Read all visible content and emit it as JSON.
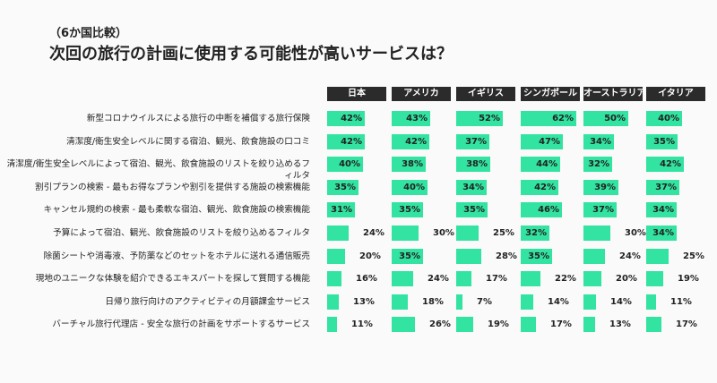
{
  "chart_data": {
    "type": "bar",
    "orientation": "horizontal",
    "subtitle": "（6か国比較）",
    "title": "次回の旅行の計画に使用する可能性が高いサービスは？",
    "categories": [
      "新型コロナウイルスによる旅行の中断を補償する旅行保険",
      "清潔度/衛生安全レベルに関する宿泊、観光、飲食施設の口コミ",
      "清潔度/衛生安全レベルによって宿泊、観光、飲食施設のリストを絞り込めるフィルタ",
      "割引プランの検索 - 最もお得なプランや割引を提供する施設の検索機能",
      "キャンセル規約の検索 - 最も柔軟な宿泊、観光、飲食施設の検索機能",
      "予算によって宿泊、観光、飲食施設のリストを絞り込めるフィルタ",
      "除菌シートや消毒液、予防薬などのセットをホテルに送れる通信販売",
      "現地のユニークな体験を紹介できるエキスパートを探して質問する機能",
      "日帰り旅行向けのアクティビティの月額課金サービス",
      "バーチャル旅行代理店 - 安全な旅行の計画をサポートするサービス"
    ],
    "series": [
      {
        "name": "日本",
        "color": "#33e3a1",
        "values": [
          42,
          42,
          40,
          35,
          31,
          24,
          20,
          16,
          13,
          11
        ],
        "value_labels": [
          "42%",
          "42%",
          "40%",
          "35%",
          "31%",
          "24%",
          "20%",
          "16%",
          "13%",
          "11%"
        ]
      },
      {
        "name": "アメリカ",
        "color": "#33e3a1",
        "values": [
          43,
          42,
          38,
          40,
          35,
          30,
          35,
          24,
          18,
          26
        ],
        "value_labels": [
          "43%",
          "42%",
          "38%",
          "40%",
          "35%",
          "30%",
          "35%",
          "24%",
          "18%",
          "26%"
        ]
      },
      {
        "name": "イギリス",
        "color": "#33e3a1",
        "values": [
          52,
          37,
          38,
          34,
          35,
          25,
          28,
          17,
          7,
          19
        ],
        "value_labels": [
          "52%",
          "37%",
          "38%",
          "34%",
          "35%",
          "25%",
          "28%",
          "17%",
          "7%",
          "19%"
        ]
      },
      {
        "name": "シンガポール",
        "color": "#33e3a1",
        "values": [
          62,
          47,
          44,
          42,
          46,
          32,
          35,
          22,
          14,
          17
        ],
        "value_labels": [
          "62%",
          "47%",
          "44%",
          "42%",
          "46%",
          "32%",
          "35%",
          "22%",
          "14%",
          "17%"
        ]
      },
      {
        "name": "オーストラリア",
        "color": "#33e3a1",
        "values": [
          50,
          34,
          32,
          39,
          37,
          30,
          24,
          20,
          14,
          13
        ],
        "value_labels": [
          "50%",
          "34%",
          "32%",
          "39%",
          "37%",
          "30%",
          "24%",
          "20%",
          "14%",
          "13%"
        ]
      },
      {
        "name": "イタリア",
        "color": "#33e3a1",
        "values": [
          40,
          35,
          42,
          37,
          34,
          34,
          25,
          19,
          11,
          17
        ],
        "value_labels": [
          "40%",
          "35%",
          "42%",
          "37%",
          "34%",
          "34%",
          "25%",
          "19%",
          "11%",
          "17%"
        ]
      }
    ]
  }
}
